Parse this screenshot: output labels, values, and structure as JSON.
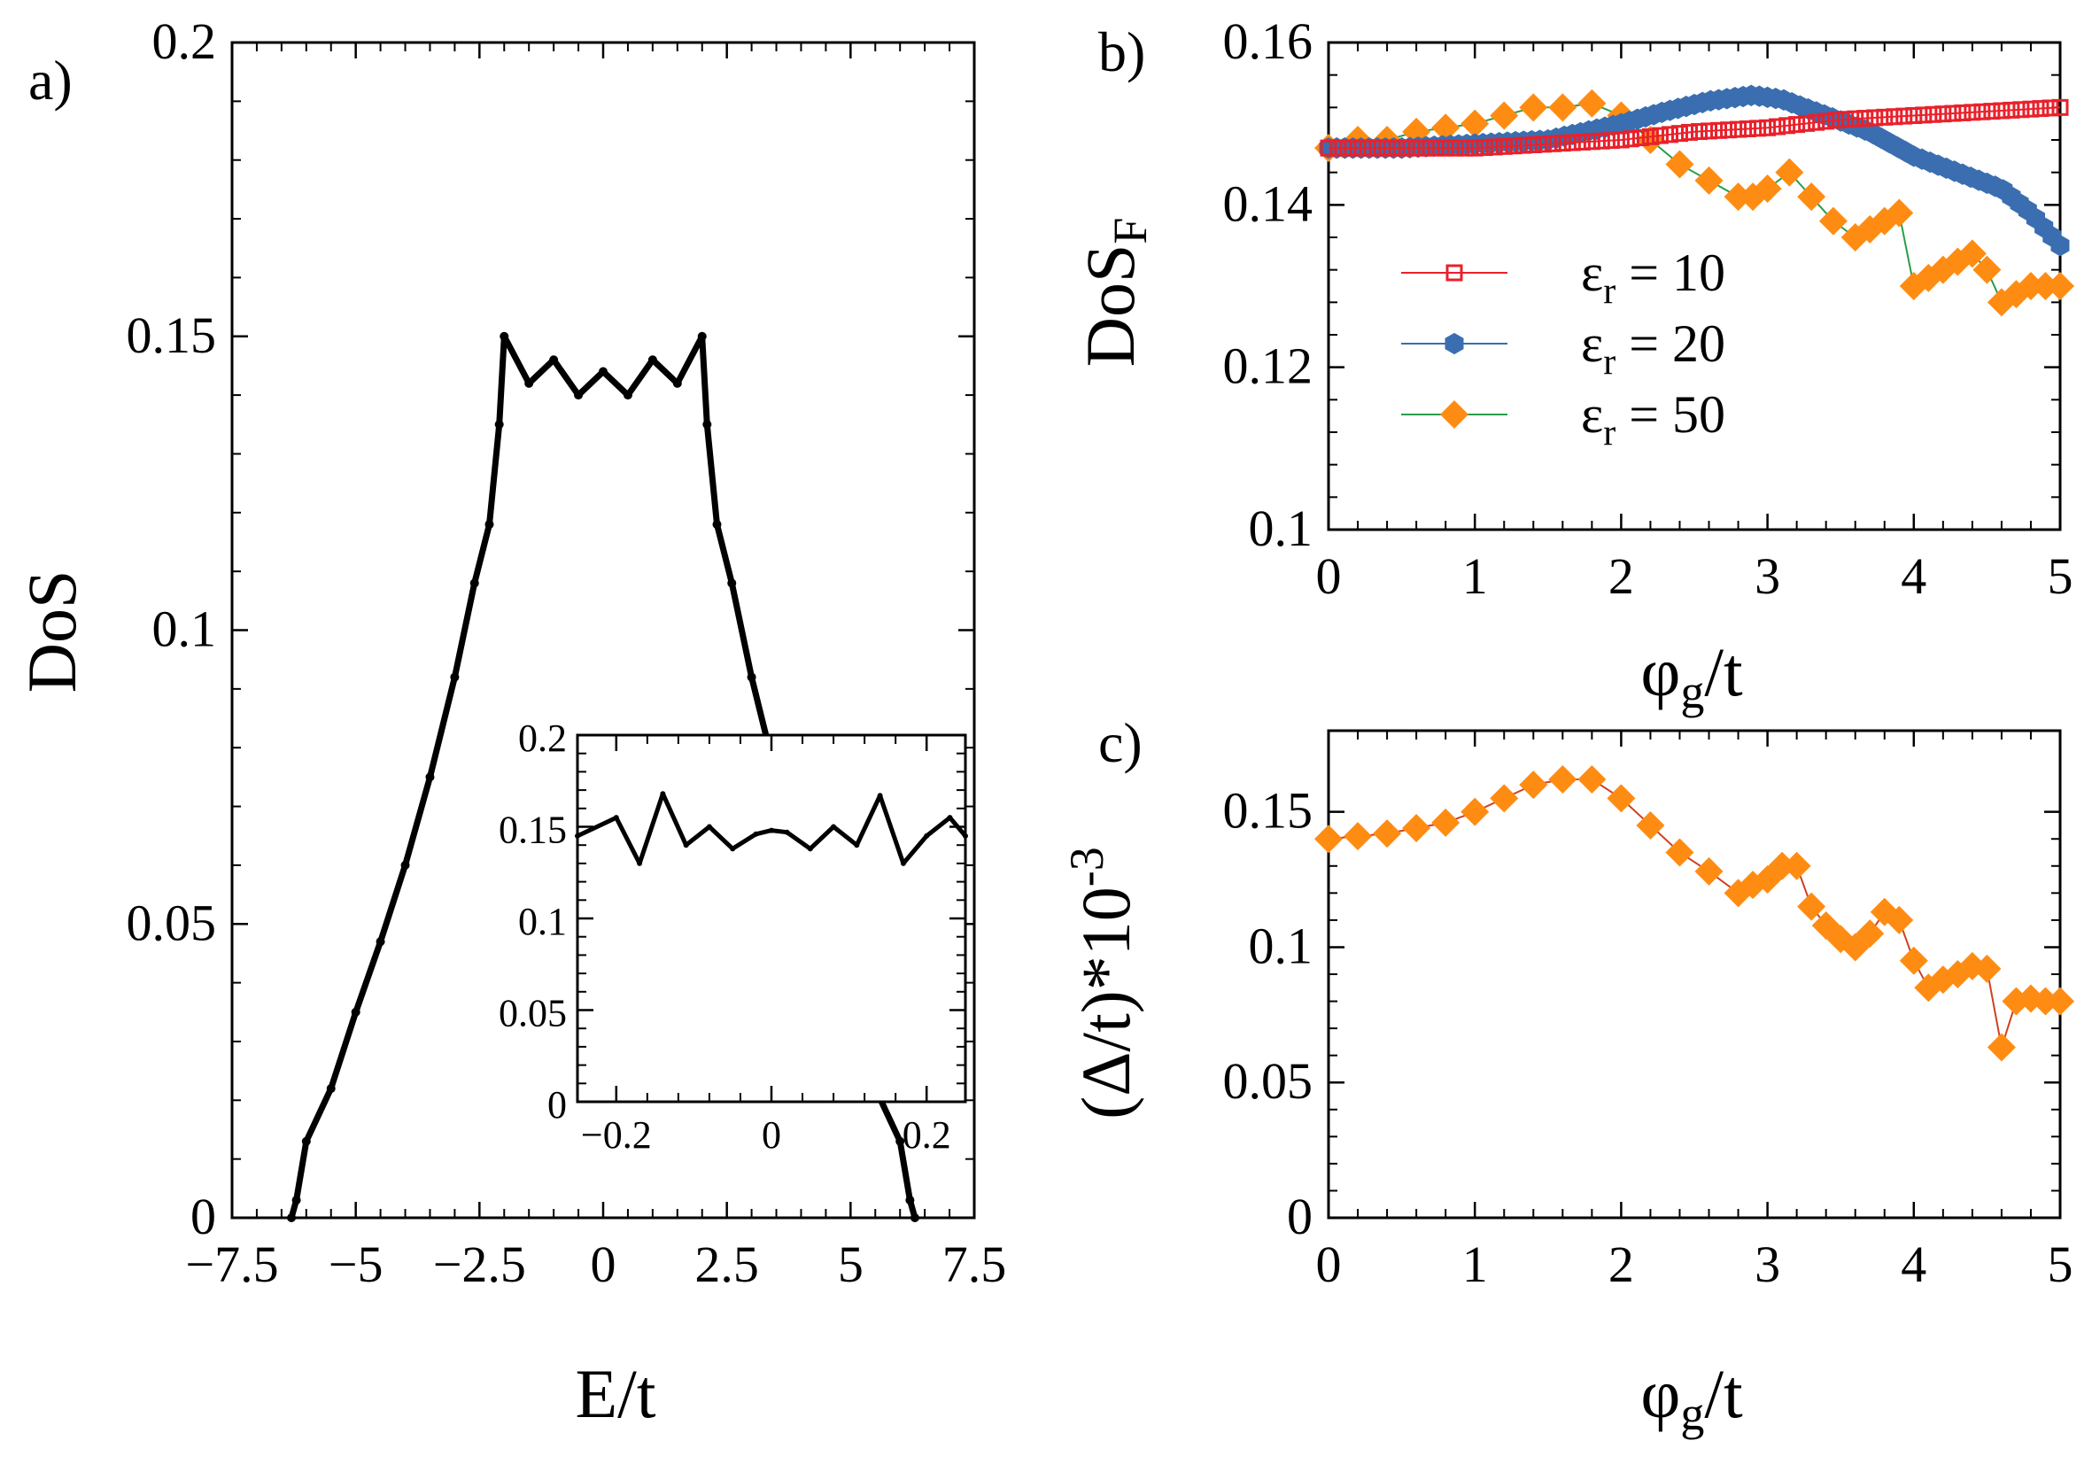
{
  "chart_data": [
    {
      "panel": "a)",
      "type": "line",
      "xlabel": "E/t",
      "ylabel": "DoS",
      "xlim": [
        -7.5,
        7.5
      ],
      "ylim": [
        0,
        0.2
      ],
      "x_ticks": [
        "−7.5",
        "−5",
        "−2.5",
        "0",
        "2.5",
        "5",
        "7.5"
      ],
      "y_ticks": [
        "0",
        "0.05",
        "0.1",
        "0.15",
        "0.2"
      ],
      "series": [
        {
          "color": "#000000",
          "x": [
            -6.3,
            -6.2,
            -6.0,
            -5.5,
            -5.0,
            -4.5,
            -4.0,
            -3.5,
            -3.0,
            -2.6,
            -2.3,
            -2.1,
            -2.0,
            -1.5,
            -1.0,
            -0.5,
            0.0,
            0.5,
            1.0,
            1.5,
            2.0,
            2.1,
            2.3,
            2.6,
            3.0,
            3.5,
            4.0,
            4.5,
            5.0,
            5.5,
            6.0,
            6.2,
            6.3
          ],
          "y": [
            0,
            0.003,
            0.013,
            0.022,
            0.035,
            0.047,
            0.06,
            0.075,
            0.092,
            0.108,
            0.118,
            0.135,
            0.15,
            0.142,
            0.146,
            0.14,
            0.144,
            0.14,
            0.146,
            0.142,
            0.15,
            0.135,
            0.118,
            0.108,
            0.092,
            0.075,
            0.06,
            0.047,
            0.035,
            0.022,
            0.013,
            0.003,
            0
          ]
        }
      ],
      "inset": {
        "type": "line",
        "xlim": [
          -0.25,
          0.25
        ],
        "ylim": [
          0,
          0.2
        ],
        "x_ticks": [
          "−0.2",
          "0",
          "0.2"
        ],
        "y_ticks": [
          "0",
          "0.05",
          "0.1",
          "0.15",
          "0.2"
        ],
        "x": [
          -0.25,
          -0.2,
          -0.17,
          -0.14,
          -0.11,
          -0.08,
          -0.05,
          -0.02,
          0.0,
          0.02,
          0.05,
          0.08,
          0.11,
          0.14,
          0.17,
          0.2,
          0.23,
          0.25
        ],
        "y": [
          0.145,
          0.155,
          0.13,
          0.168,
          0.14,
          0.15,
          0.138,
          0.146,
          0.148,
          0.147,
          0.138,
          0.15,
          0.14,
          0.167,
          0.13,
          0.145,
          0.155,
          0.145
        ]
      }
    },
    {
      "panel": "b)",
      "type": "scatter",
      "xlabel": "φg/t",
      "ylabel": "DoSF",
      "xlim": [
        0,
        5
      ],
      "ylim": [
        0.1,
        0.16
      ],
      "x_ticks": [
        "0",
        "1",
        "2",
        "3",
        "4",
        "5"
      ],
      "y_ticks": [
        "0.1",
        "0.12",
        "0.14",
        "0.16"
      ],
      "legend": "middle-left",
      "series": [
        {
          "name": "εr = 10",
          "legend_prefix": "ε",
          "legend_sub": "r",
          "legend_suffix": " = 10",
          "color": "#e8212b",
          "marker": "square",
          "x": [
            0,
            0.5,
            1.0,
            1.5,
            2.0,
            2.5,
            3.0,
            3.5,
            4.0,
            4.5,
            5.0
          ],
          "y": [
            0.147,
            0.147,
            0.147,
            0.1475,
            0.148,
            0.149,
            0.1495,
            0.1505,
            0.151,
            0.1515,
            0.152
          ]
        },
        {
          "name": "εr = 20",
          "legend_prefix": "ε",
          "legend_sub": "r",
          "legend_suffix": " = 20",
          "color": "#3a6eb0",
          "marker": "hexagon",
          "x": [
            0,
            0.5,
            1.0,
            1.5,
            2.0,
            2.3,
            2.6,
            2.9,
            3.1,
            3.4,
            3.7,
            4.0,
            4.3,
            4.6,
            4.8,
            5.0
          ],
          "y": [
            0.147,
            0.147,
            0.1475,
            0.148,
            0.15,
            0.1515,
            0.1528,
            0.1535,
            0.153,
            0.151,
            0.149,
            0.146,
            0.144,
            0.142,
            0.139,
            0.135
          ]
        },
        {
          "name": "εr = 50",
          "legend_prefix": "ε",
          "legend_sub": "r",
          "legend_suffix": " = 50",
          "color": "#ff8c12",
          "marker": "diamond",
          "x": [
            0,
            0.2,
            0.4,
            0.6,
            0.8,
            1.0,
            1.2,
            1.4,
            1.6,
            1.8,
            2.0,
            2.2,
            2.4,
            2.6,
            2.8,
            2.9,
            3.0,
            3.15,
            3.3,
            3.45,
            3.6,
            3.7,
            3.8,
            3.9,
            4.0,
            4.1,
            4.2,
            4.3,
            4.4,
            4.5,
            4.6,
            4.7,
            4.8,
            4.9,
            5.0
          ],
          "y": [
            0.147,
            0.148,
            0.148,
            0.149,
            0.1495,
            0.15,
            0.151,
            0.152,
            0.152,
            0.1525,
            0.151,
            0.148,
            0.145,
            0.143,
            0.141,
            0.141,
            0.142,
            0.144,
            0.141,
            0.138,
            0.136,
            0.137,
            0.138,
            0.139,
            0.13,
            0.131,
            0.132,
            0.133,
            0.134,
            0.132,
            0.128,
            0.129,
            0.13,
            0.13,
            0.13
          ]
        }
      ]
    },
    {
      "panel": "c)",
      "type": "scatter",
      "xlabel": "φg/t",
      "ylabel": "(Δ/t)*10-3",
      "xlim": [
        0,
        5
      ],
      "ylim": [
        0,
        0.18
      ],
      "x_ticks": [
        "0",
        "1",
        "2",
        "3",
        "4",
        "5"
      ],
      "y_ticks": [
        "0",
        "0.05",
        "0.1",
        "0.15"
      ],
      "series": [
        {
          "color": "#ff8c12",
          "line_color": "#d04020",
          "marker": "diamond",
          "x": [
            0,
            0.2,
            0.4,
            0.6,
            0.8,
            1.0,
            1.2,
            1.4,
            1.6,
            1.8,
            2.0,
            2.2,
            2.4,
            2.6,
            2.8,
            2.9,
            3.0,
            3.1,
            3.2,
            3.3,
            3.4,
            3.5,
            3.6,
            3.7,
            3.8,
            3.9,
            4.0,
            4.1,
            4.2,
            4.3,
            4.4,
            4.5,
            4.6,
            4.7,
            4.8,
            4.9,
            5.0
          ],
          "y": [
            0.14,
            0.141,
            0.142,
            0.144,
            0.146,
            0.15,
            0.155,
            0.16,
            0.162,
            0.162,
            0.155,
            0.145,
            0.135,
            0.128,
            0.12,
            0.123,
            0.125,
            0.13,
            0.13,
            0.115,
            0.108,
            0.103,
            0.1,
            0.105,
            0.113,
            0.11,
            0.095,
            0.085,
            0.088,
            0.09,
            0.093,
            0.092,
            0.063,
            0.08,
            0.081,
            0.08,
            0.08
          ]
        }
      ]
    }
  ]
}
